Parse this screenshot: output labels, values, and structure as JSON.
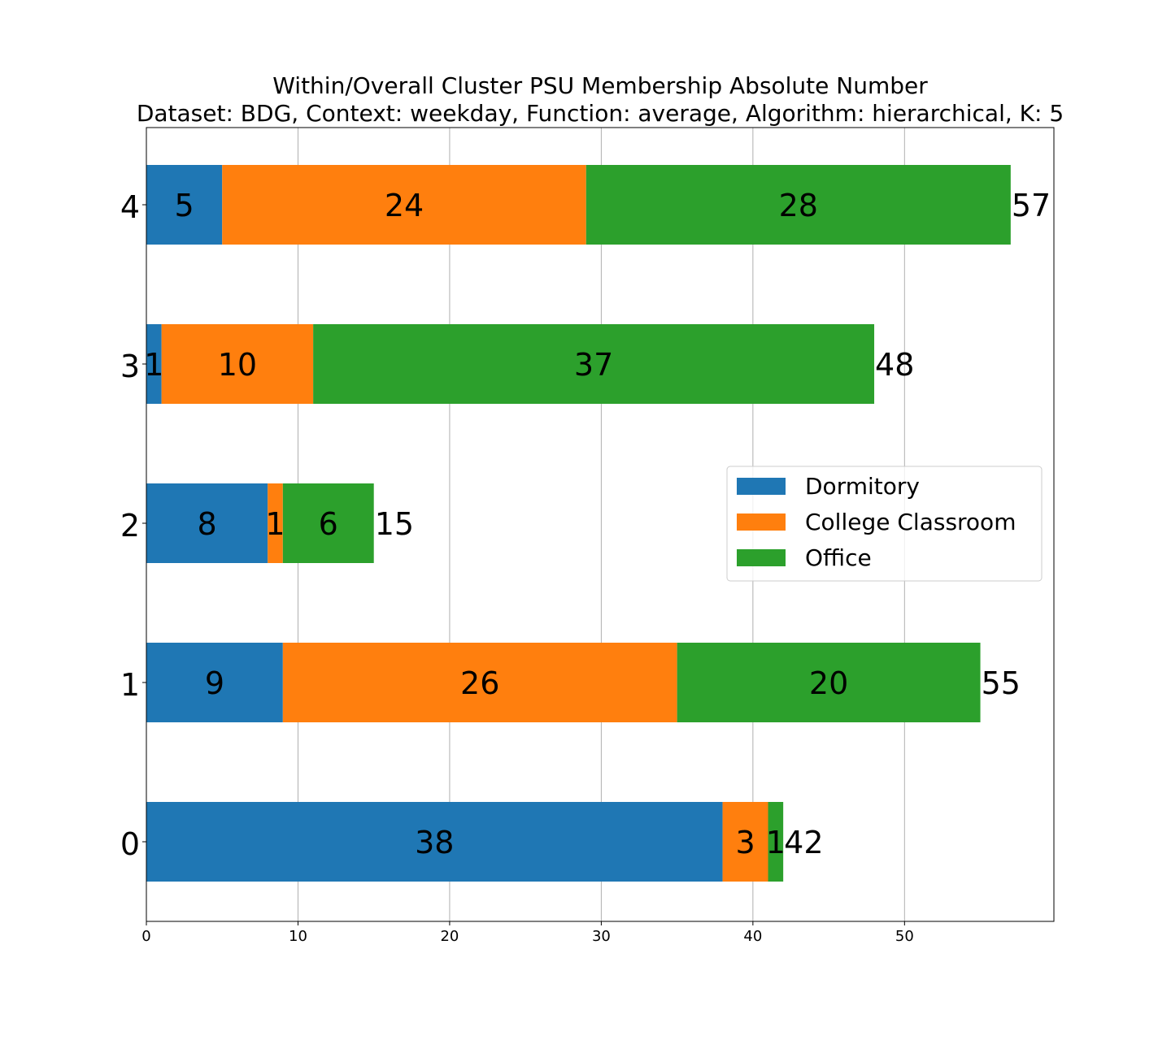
{
  "chart_data": {
    "type": "bar",
    "orientation": "horizontal",
    "stacked": true,
    "title": "Within/Overall Cluster PSU Membership Absolute Number",
    "subtitle": "Dataset: BDG, Context: weekday, Function: average, Algorithm: hierarchical, K: 5",
    "xlabel": "",
    "ylabel": "",
    "categories": [
      "0",
      "1",
      "2",
      "3",
      "4"
    ],
    "series": [
      {
        "name": "Dormitory",
        "color": "#1f77b4",
        "values": [
          38,
          9,
          8,
          1,
          5
        ]
      },
      {
        "name": "College Classroom",
        "color": "#ff7f0e",
        "values": [
          3,
          26,
          1,
          10,
          24
        ]
      },
      {
        "name": "Office",
        "color": "#2ca02c",
        "values": [
          1,
          20,
          6,
          37,
          28
        ]
      }
    ],
    "totals": [
      42,
      55,
      15,
      48,
      57
    ],
    "xlim": [
      0,
      59.85
    ],
    "xticks": [
      0,
      10,
      20,
      30,
      40,
      50
    ],
    "grid": "x-major",
    "legend_position": "center-right"
  }
}
